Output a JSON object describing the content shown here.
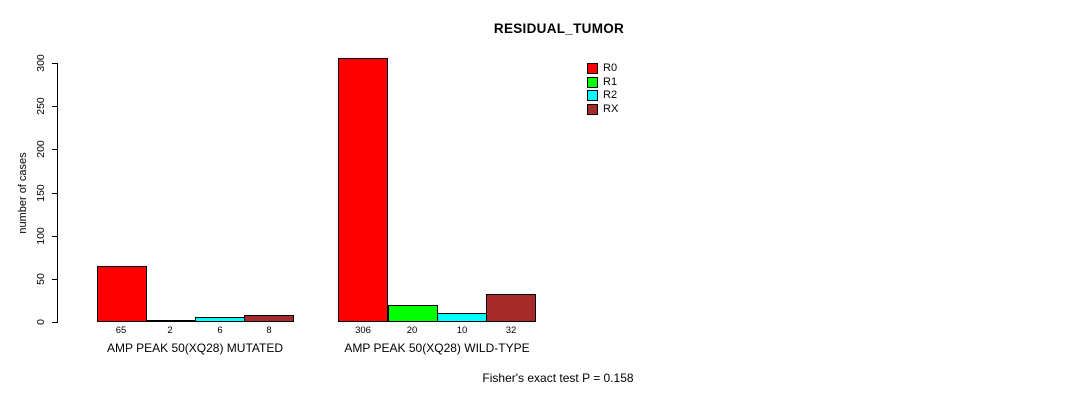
{
  "title": "RESIDUAL_TUMOR",
  "footer": "Fisher's exact test P = 0.158",
  "chart_data": {
    "type": "bar",
    "title": "RESIDUAL_TUMOR",
    "xlabel": "",
    "ylabel": "number of cases",
    "ylim": [
      0,
      300
    ],
    "yticks": [
      0,
      50,
      100,
      150,
      200,
      250,
      300
    ],
    "grid": false,
    "legend_position": "top-right",
    "categories": [
      "AMP PEAK 50(XQ28) MUTATED",
      "AMP PEAK 50(XQ28) WILD-TYPE"
    ],
    "series": [
      {
        "name": "R0",
        "color": "#ff0000",
        "values": [
          65,
          306
        ]
      },
      {
        "name": "R1",
        "color": "#00ff00",
        "values": [
          2,
          20
        ]
      },
      {
        "name": "R2",
        "color": "#00ffff",
        "values": [
          6,
          10
        ]
      },
      {
        "name": "RX",
        "color": "#a52a2a",
        "values": [
          8,
          32
        ]
      }
    ],
    "bar_value_labels": [
      [
        "65",
        "2",
        "6",
        "8"
      ],
      [
        "306",
        "20",
        "10",
        "32"
      ]
    ],
    "annotation": "Fisher's exact test P = 0.158"
  }
}
